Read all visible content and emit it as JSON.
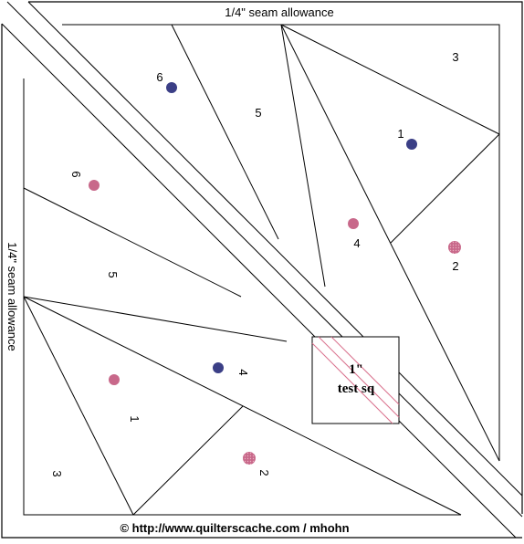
{
  "top_seam_label": "1/4\" seam allowance",
  "left_seam_label": "1/4\" seam allowance",
  "test_square": {
    "line1": "1\"",
    "line2": "test sq"
  },
  "credit": "© http://www.quilterscache.com / mhohn",
  "upper_section_numbers": {
    "n6": "6",
    "n5": "5",
    "n3": "3",
    "n1": "1",
    "n4": "4",
    "n2": "2"
  },
  "left_section_numbers": {
    "n6": "6",
    "n5": "5",
    "n4": "4",
    "n1": "1",
    "n3": "3",
    "n2": "2"
  },
  "colors": {
    "navy_dot": "#3b3f86",
    "pink_dot": "#c8688a",
    "test_square_diagonal": "#d9708c"
  }
}
